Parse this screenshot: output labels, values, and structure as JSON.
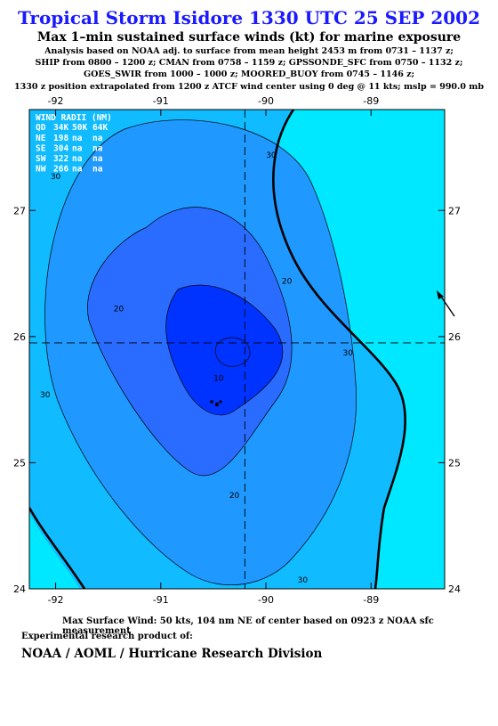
{
  "header": {
    "title": "Tropical Storm Isidore 1330 UTC 25 SEP 2002",
    "subtitle": "Max 1–min sustained surface winds (kt) for marine exposure",
    "info_lines": [
      "Analysis based on  NOAA adj. to surface from mean height 2453 m from 0731 – 1137 z;",
      "SHIP from 0800 – 1200 z;  CMAN from 0758 – 1159 z;  GPSSONDE_SFC from 0750 – 1132 z;",
      "GOES_SWIR from 1000 – 1000 z;  MOORED_BUOY from 0745 – 1146 z;",
      "1330 z position extrapolated from 1200 z ATCF wind center using 0 deg @ 11 kts; mslp = 990.0 mb"
    ]
  },
  "chart_data": {
    "type": "contour",
    "xlim": [
      -92.25,
      -88.3
    ],
    "ylim": [
      24.0,
      27.8
    ],
    "x_ticks": [
      -92,
      -91,
      -90,
      -89
    ],
    "y_ticks": [
      24,
      25,
      26,
      27
    ],
    "x_tick_labels": [
      "-92",
      "-91",
      "-90",
      "-89"
    ],
    "y_tick_labels": [
      "24",
      "25",
      "26",
      "27"
    ],
    "center": {
      "lon": -90.2,
      "lat": 25.95
    },
    "contour_levels": [
      10,
      20,
      30,
      34
    ],
    "contour_labels": [
      {
        "text": "10",
        "lon": -90.45,
        "lat": 25.65
      },
      {
        "text": "20",
        "lon": -91.4,
        "lat": 26.2
      },
      {
        "text": "20",
        "lon": -89.8,
        "lat": 26.42
      },
      {
        "text": "20",
        "lon": -90.3,
        "lat": 24.72
      },
      {
        "text": "30",
        "lon": -92.0,
        "lat": 27.25
      },
      {
        "text": "30",
        "lon": -92.1,
        "lat": 25.52
      },
      {
        "text": "30",
        "lon": -89.95,
        "lat": 27.42
      },
      {
        "text": "30",
        "lon": -89.22,
        "lat": 25.85
      },
      {
        "text": "30",
        "lon": -89.65,
        "lat": 24.05
      }
    ],
    "wind_radii": {
      "header": "WIND RADII (NM)",
      "columns": [
        "QD",
        "34K",
        "50K",
        "64K"
      ],
      "rows": [
        [
          "NE",
          "198",
          "na",
          "na"
        ],
        [
          "SE",
          "304",
          "na",
          "na"
        ],
        [
          "SW",
          "322",
          "na",
          "na"
        ],
        [
          "NW",
          "266",
          "na",
          "na"
        ]
      ]
    },
    "fill_colors": {
      "lt10": "#0033ff",
      "10to20": "#2a6cff",
      "20to30": "#1f98ff",
      "30to34": "#10bbff",
      "ge34": "#00e8ff"
    },
    "crosshair_color": "#000000",
    "arrow": {
      "direction": "NW"
    }
  },
  "footer": {
    "max_wind": "Max Surface Wind: 50 kts, 104 nm NE of center based on 0923 z NOAA sfc measurement",
    "experimental": "Experimental research product of:",
    "org": "NOAA / AOML / Hurricane Research Division"
  }
}
